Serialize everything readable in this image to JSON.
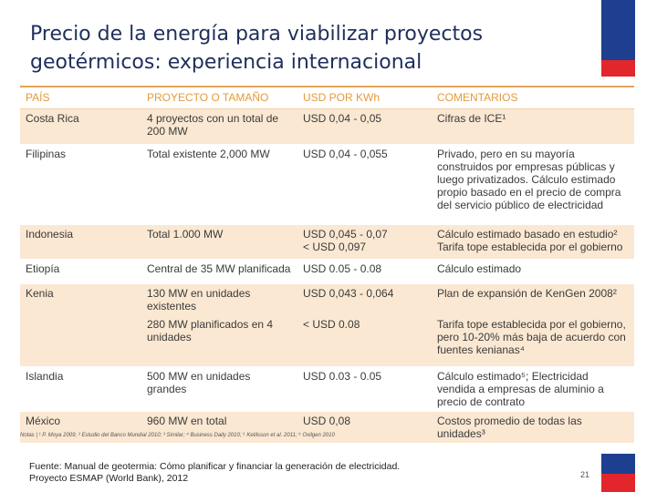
{
  "title_line1": "Precio de la energía para viabilizar proyectos",
  "title_line2": "geotérmicos: experiencia internacional",
  "headers": [
    "PAÍS",
    "PROYECTO O TAMAÑO",
    "USD POR KWh",
    "COMENTARIOS"
  ],
  "rows": [
    {
      "pais": "Costa Rica",
      "proyecto": "4 proyectos con un total de 200 MW",
      "usd": "USD 0,04 - 0,05",
      "comentario": "Cifras de ICE¹"
    },
    {
      "pais": "Filipinas",
      "proyecto": "Total existente 2,000 MW",
      "usd": "USD 0,04 - 0,055",
      "comentario": "Privado, pero en su mayoría construidos por empresas públicas y luego privatizados. Cálculo estimado propio basado en el precio de compra del servicio público de electricidad"
    },
    {
      "pais": "Indonesia",
      "proyecto": "Total 1.000 MW",
      "usd": "USD 0,045 - 0,07",
      "usd2": "< USD 0,097",
      "comentario": "Cálculo estimado basado en estudio²",
      "comentario2": "Tarifa tope establecida por el gobierno"
    },
    {
      "pais": "Etiopía",
      "proyecto": "Central de 35 MW planificada",
      "usd": "USD 0.05 - 0.08",
      "comentario": "Cálculo estimado"
    },
    {
      "pais": "Kenia",
      "proyecto": "130 MW en unidades existentes",
      "usd": "USD 0,043 - 0,064",
      "comentario": "Plan de expansión de KenGen 2008²"
    },
    {
      "pais": "",
      "proyecto": "280 MW planificados en 4 unidades",
      "usd": "< USD 0.08",
      "comentario": "Tarifa tope establecida por el gobierno, pero 10-20% más baja de acuerdo con fuentes kenianas⁴"
    },
    {
      "pais": "Islandia",
      "proyecto": "500 MW en unidades grandes",
      "usd": "USD 0.03 - 0.05",
      "comentario": "Cálculo estimado⁵; Electricidad vendida a empresas de aluminio a precio de contrato"
    },
    {
      "pais": "México",
      "proyecto": "960 MW en total",
      "usd": "USD 0,08",
      "comentario": "Costos promedio de todas las unidades³"
    }
  ],
  "notes": "Notas | ¹ P. Moya 2009; ² Estudio del Banco Mundial 2010; ³ Similar; ⁴ Business Daily 2010; ⁵ Ketilsson et al. 2011; ⁶ Oxilgen 2010",
  "source_line1": "Fuente: Manual de geotermia: Cómo planificar y financiar la generación de electricidad.",
  "source_line2": "Proyecto ESMAP (World Bank), 2012",
  "page_number": "21",
  "colors": {
    "title": "#1f2f5c",
    "header": "#e49a3c",
    "shade": "#fbe8d2",
    "flag_blue": "#1e3f8f",
    "flag_red": "#e3262b"
  }
}
